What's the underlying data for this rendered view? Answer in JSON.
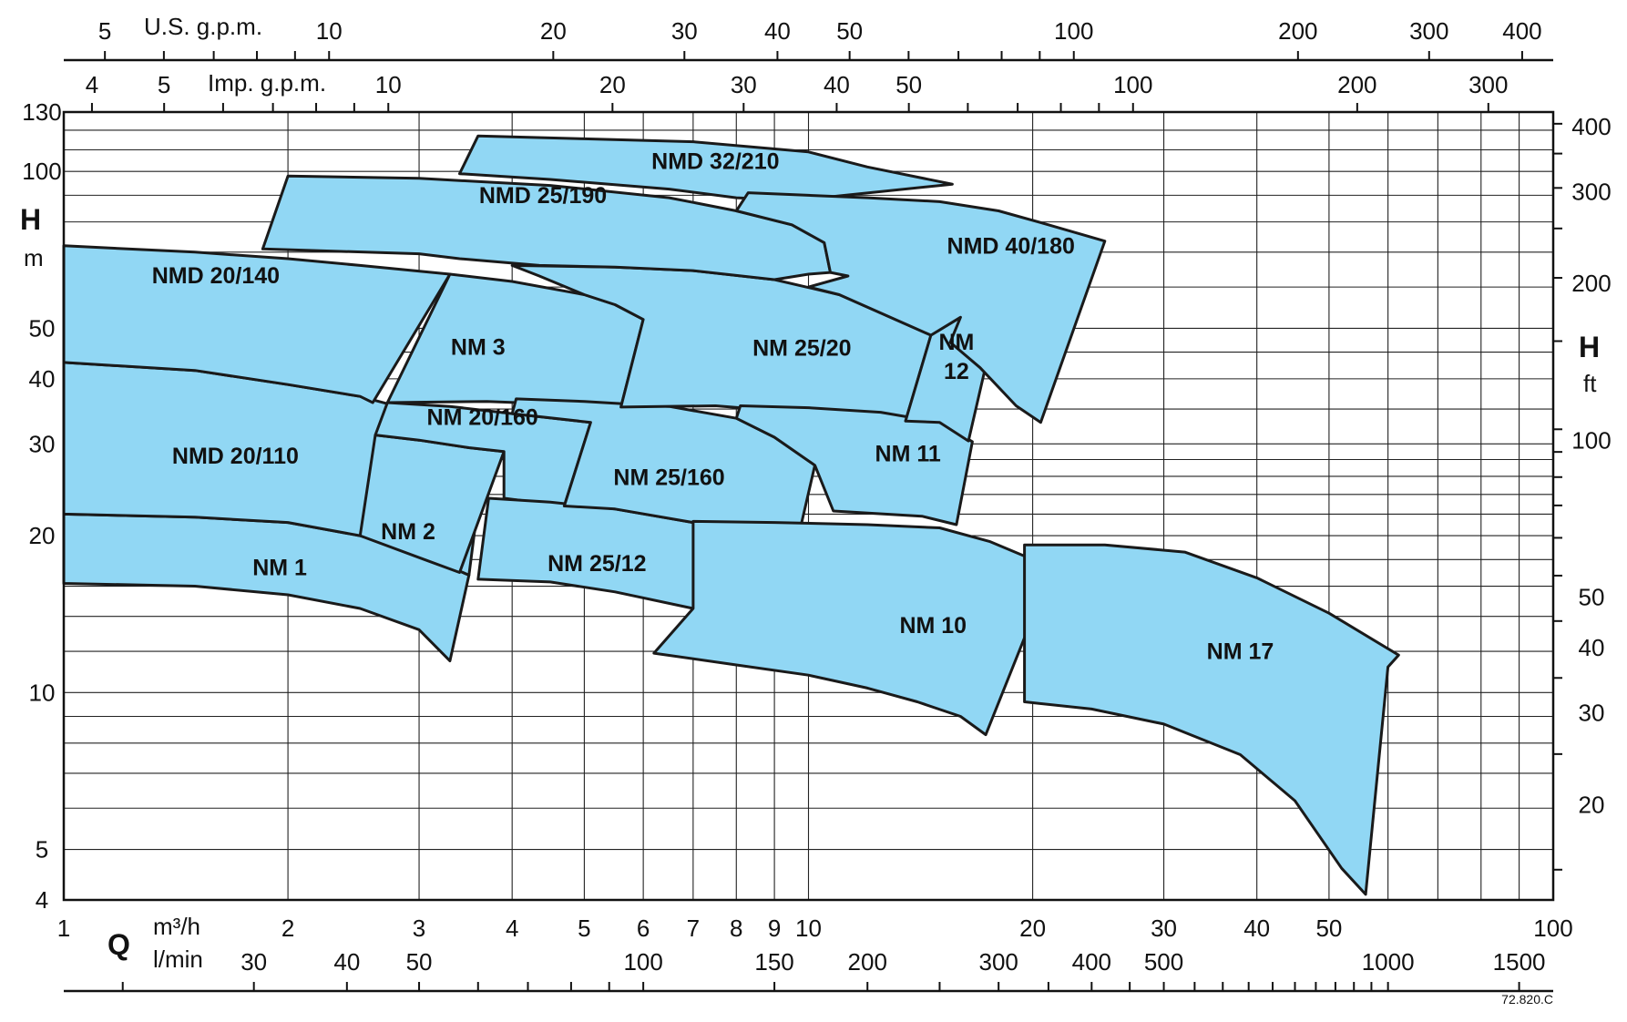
{
  "chart_data": {
    "type": "area",
    "chart_kind": "pump selection chart (log-log)",
    "x_scale": "log",
    "y_scale": "log",
    "xlim": [
      1,
      100
    ],
    "ylim": [
      4,
      130
    ],
    "colors": {
      "region_fill": "#91d7f4",
      "region_stroke": "#1a1a1a",
      "grid": "#222222"
    },
    "grid": true,
    "axes": {
      "q_symbol": "Q",
      "x_bottom_primary": {
        "unit": "m³/h",
        "ticks": [
          1,
          2,
          3,
          4,
          5,
          6,
          7,
          8,
          9,
          10,
          20,
          30,
          40,
          50,
          100
        ],
        "labels": [
          "1",
          "2",
          "3",
          "4",
          "5",
          "6",
          "7",
          "8",
          "9",
          "10",
          "20",
          "30",
          "40",
          "50",
          "100"
        ]
      },
      "x_bottom_secondary": {
        "unit": "l/min",
        "ticks": [
          30,
          40,
          50,
          100,
          150,
          200,
          300,
          400,
          500,
          1000,
          1500
        ],
        "labels": [
          "30",
          "40",
          "50",
          "100",
          "150",
          "200",
          "300",
          "400",
          "500",
          "1000",
          "1500"
        ]
      },
      "x_top_us": {
        "unit": "U.S. g.p.m.",
        "ticks": [
          5,
          10,
          20,
          30,
          40,
          50,
          100,
          200,
          300,
          400
        ],
        "labels": [
          "5",
          "10",
          "20",
          "30",
          "40",
          "50",
          "100",
          "200",
          "300",
          "400"
        ]
      },
      "x_top_imp": {
        "unit": "Imp. g.p.m.",
        "ticks": [
          4,
          5,
          10,
          20,
          30,
          40,
          50,
          100,
          200,
          300
        ],
        "labels": [
          "4",
          "5",
          "10",
          "20",
          "30",
          "40",
          "50",
          "100",
          "200",
          "300"
        ]
      },
      "y_left": {
        "symbol": "H",
        "unit": "m",
        "ticks": [
          4,
          5,
          10,
          20,
          30,
          40,
          50,
          100,
          130
        ],
        "labels": [
          "4",
          "5",
          "10",
          "20",
          "30",
          "40",
          "50",
          "100",
          "130"
        ]
      },
      "y_right": {
        "symbol": "H",
        "unit": "ft",
        "ticks": [
          20,
          30,
          40,
          50,
          100,
          200,
          300,
          400
        ],
        "labels": [
          "20",
          "30",
          "40",
          "50",
          "100",
          "200",
          "300",
          "400"
        ]
      }
    },
    "series": [
      {
        "name": "NM 1",
        "label_at": [
          1.95,
          16.8
        ],
        "polygon": [
          [
            1,
            22
          ],
          [
            1.5,
            21.7
          ],
          [
            2,
            21.2
          ],
          [
            2.5,
            20
          ],
          [
            3,
            18.5
          ],
          [
            3.5,
            16.8
          ],
          [
            3.3,
            11.5
          ],
          [
            3,
            13.2
          ],
          [
            2.5,
            14.5
          ],
          [
            2,
            15.4
          ],
          [
            1.5,
            16
          ],
          [
            1,
            16.2
          ]
        ]
      },
      {
        "name": "NMD 20/110",
        "label_at": [
          1.7,
          27.5
        ],
        "polygon": [
          [
            1,
            43
          ],
          [
            1.5,
            41.5
          ],
          [
            2,
            39
          ],
          [
            2.5,
            37
          ],
          [
            3,
            34.5
          ],
          [
            3.7,
            31.2
          ],
          [
            3.5,
            16.8
          ],
          [
            3,
            18.5
          ],
          [
            2.5,
            20
          ],
          [
            2,
            21.2
          ],
          [
            1.5,
            21.7
          ],
          [
            1,
            22
          ]
        ]
      },
      {
        "name": "NMD 20/140",
        "label_at": [
          1.6,
          61
        ],
        "polygon": [
          [
            1,
            72
          ],
          [
            1.5,
            70
          ],
          [
            2,
            68
          ],
          [
            2.5,
            66
          ],
          [
            3.3,
            63.5
          ],
          [
            2.6,
            36
          ],
          [
            2.5,
            37
          ],
          [
            2,
            39
          ],
          [
            1.5,
            41.5
          ],
          [
            1,
            43
          ]
        ]
      },
      {
        "name": "NM 2",
        "label_at": [
          2.9,
          19.7
        ],
        "polygon": [
          [
            2.62,
            31.2
          ],
          [
            3,
            30.5
          ],
          [
            3.5,
            29.5
          ],
          [
            3.9,
            29
          ],
          [
            3.4,
            17
          ],
          [
            3.05,
            18
          ],
          [
            2.5,
            20
          ]
        ]
      },
      {
        "name": "NM 20/160",
        "label_at": [
          3.65,
          32.6
        ],
        "polygon": [
          [
            2.72,
            36
          ],
          [
            3.3,
            35.4
          ],
          [
            4,
            34.3
          ],
          [
            5.1,
            33
          ],
          [
            4.7,
            22.8
          ],
          [
            3.9,
            23.6
          ],
          [
            3.9,
            29
          ],
          [
            3.5,
            29.5
          ],
          [
            3,
            30.5
          ],
          [
            2.62,
            31.2
          ]
        ]
      },
      {
        "name": "NM 3",
        "label_at": [
          3.6,
          44.5
        ],
        "polygon": [
          [
            3.3,
            63.5
          ],
          [
            4,
            61.5
          ],
          [
            5,
            58
          ],
          [
            5.5,
            55.5
          ],
          [
            6,
            52
          ],
          [
            5.6,
            35.3
          ],
          [
            4.5,
            35.8
          ],
          [
            3.7,
            36.2
          ],
          [
            2.72,
            36
          ]
        ]
      },
      {
        "name": "NM 25/12",
        "label_at": [
          5.2,
          17.1
        ],
        "polygon": [
          [
            3.72,
            23.6
          ],
          [
            4.5,
            23.2
          ],
          [
            5.5,
            22.5
          ],
          [
            7,
            21.2
          ],
          [
            8.5,
            19.2
          ],
          [
            9.8,
            17
          ],
          [
            9.2,
            11.7
          ],
          [
            8.1,
            13.3
          ],
          [
            7,
            14.5
          ],
          [
            5.5,
            15.6
          ],
          [
            4.5,
            16.3
          ],
          [
            3.6,
            16.5
          ]
        ]
      },
      {
        "name": "NM 25/160",
        "label_at": [
          6.5,
          25
        ],
        "polygon": [
          [
            4.05,
            36.6
          ],
          [
            5,
            36.2
          ],
          [
            6.5,
            35.4
          ],
          [
            8,
            33.6
          ],
          [
            9,
            30.9
          ],
          [
            10.2,
            27.3
          ],
          [
            9.7,
            20
          ],
          [
            9.8,
            17
          ],
          [
            8.5,
            19.2
          ],
          [
            7,
            21.2
          ],
          [
            5.5,
            22.5
          ],
          [
            4.7,
            22.8
          ],
          [
            5.1,
            33
          ],
          [
            4,
            34.3
          ]
        ]
      },
      {
        "name": "NM 25/20",
        "label_at": [
          9.8,
          44.3
        ],
        "polygon": [
          [
            4,
            66
          ],
          [
            5.5,
            65.5
          ],
          [
            7,
            64.5
          ],
          [
            9,
            62
          ],
          [
            11,
            58
          ],
          [
            14.6,
            48.5
          ],
          [
            13.5,
            33.2
          ],
          [
            12.5,
            33.8
          ],
          [
            8.5,
            35
          ],
          [
            7.5,
            35.5
          ],
          [
            5.6,
            35.3
          ],
          [
            6,
            52
          ],
          [
            5.5,
            55.5
          ],
          [
            5,
            58
          ],
          [
            4.35,
            63
          ]
        ]
      },
      {
        "name": "NM 11",
        "label_at": [
          13.6,
          27.8
        ],
        "polygon": [
          [
            8.1,
            35.5
          ],
          [
            10,
            35.2
          ],
          [
            12.5,
            34.5
          ],
          [
            15,
            33
          ],
          [
            16.6,
            30.3
          ],
          [
            15.8,
            21
          ],
          [
            14.2,
            21.8
          ],
          [
            10.8,
            22.3
          ],
          [
            10.2,
            27.3
          ],
          [
            9,
            30.9
          ],
          [
            8,
            33.6
          ]
        ]
      },
      {
        "name": "NM 12",
        "label_at": [
          15.8,
          43
        ],
        "polygon": [
          [
            14.6,
            48.5
          ],
          [
            16,
            52.5
          ],
          [
            17.8,
            50.5
          ],
          [
            16.4,
            30.4
          ],
          [
            15,
            33
          ],
          [
            13.5,
            33.2
          ]
        ]
      },
      {
        "name": "NMD 25/190",
        "label_at": [
          4.4,
          87
        ],
        "polygon": [
          [
            2,
            98
          ],
          [
            3,
            97
          ],
          [
            4.5,
            94
          ],
          [
            6.5,
            89
          ],
          [
            8,
            84
          ],
          [
            9.5,
            79
          ],
          [
            10.5,
            73
          ],
          [
            10.7,
            64
          ],
          [
            10,
            63.5
          ],
          [
            9,
            62
          ],
          [
            7,
            64.5
          ],
          [
            5.5,
            65.5
          ],
          [
            4.35,
            66
          ],
          [
            3.4,
            68
          ],
          [
            3,
            69.5
          ],
          [
            1.85,
            71
          ]
        ]
      },
      {
        "name": "NMD 32/210",
        "label_at": [
          7.5,
          101
        ],
        "polygon": [
          [
            3.6,
            117
          ],
          [
            5,
            115.5
          ],
          [
            7,
            114
          ],
          [
            10,
            109
          ],
          [
            12,
            102
          ],
          [
            15.6,
            94.5
          ],
          [
            9.6,
            88
          ],
          [
            8,
            89
          ],
          [
            6.5,
            92.5
          ],
          [
            4.5,
            96.5
          ],
          [
            3.4,
            99
          ]
        ]
      },
      {
        "name": "NMD 40/180",
        "label_at": [
          18.7,
          69.5
        ],
        "polygon": [
          [
            8.3,
            91
          ],
          [
            10,
            90
          ],
          [
            12,
            89
          ],
          [
            15,
            87.5
          ],
          [
            18,
            84
          ],
          [
            21,
            79
          ],
          [
            25,
            73.5
          ],
          [
            20.5,
            33
          ],
          [
            19,
            35.5
          ],
          [
            17,
            42
          ],
          [
            15.5,
            47
          ],
          [
            16,
            52.5
          ],
          [
            14.6,
            48.5
          ],
          [
            11,
            58
          ],
          [
            10,
            60
          ],
          [
            11.3,
            63
          ],
          [
            10.7,
            64
          ],
          [
            10.5,
            73
          ],
          [
            9.5,
            79
          ],
          [
            8,
            84
          ]
        ]
      },
      {
        "name": "NM 10",
        "label_at": [
          14.7,
          13
        ],
        "polygon": [
          [
            7,
            21.3
          ],
          [
            9,
            21.2
          ],
          [
            12,
            21
          ],
          [
            15,
            20.7
          ],
          [
            17.5,
            19.5
          ],
          [
            20,
            18
          ],
          [
            21,
            16.6
          ],
          [
            17.3,
            8.3
          ],
          [
            16,
            9
          ],
          [
            14,
            9.6
          ],
          [
            12,
            10.2
          ],
          [
            10,
            10.8
          ],
          [
            8,
            11.3
          ],
          [
            6.2,
            11.9
          ],
          [
            7,
            14.5
          ]
        ]
      },
      {
        "name": "NM 17",
        "label_at": [
          38,
          11.6
        ],
        "polygon": [
          [
            19.5,
            19.2
          ],
          [
            25,
            19.2
          ],
          [
            32,
            18.6
          ],
          [
            40,
            16.6
          ],
          [
            50,
            14.2
          ],
          [
            62,
            11.8
          ],
          [
            60,
            11.2
          ],
          [
            56,
            4.1
          ],
          [
            52,
            4.6
          ],
          [
            45,
            6.2
          ],
          [
            38,
            7.6
          ],
          [
            30,
            8.7
          ],
          [
            24,
            9.3
          ],
          [
            19.5,
            9.6
          ]
        ]
      }
    ],
    "footnote": "72.820.C"
  }
}
